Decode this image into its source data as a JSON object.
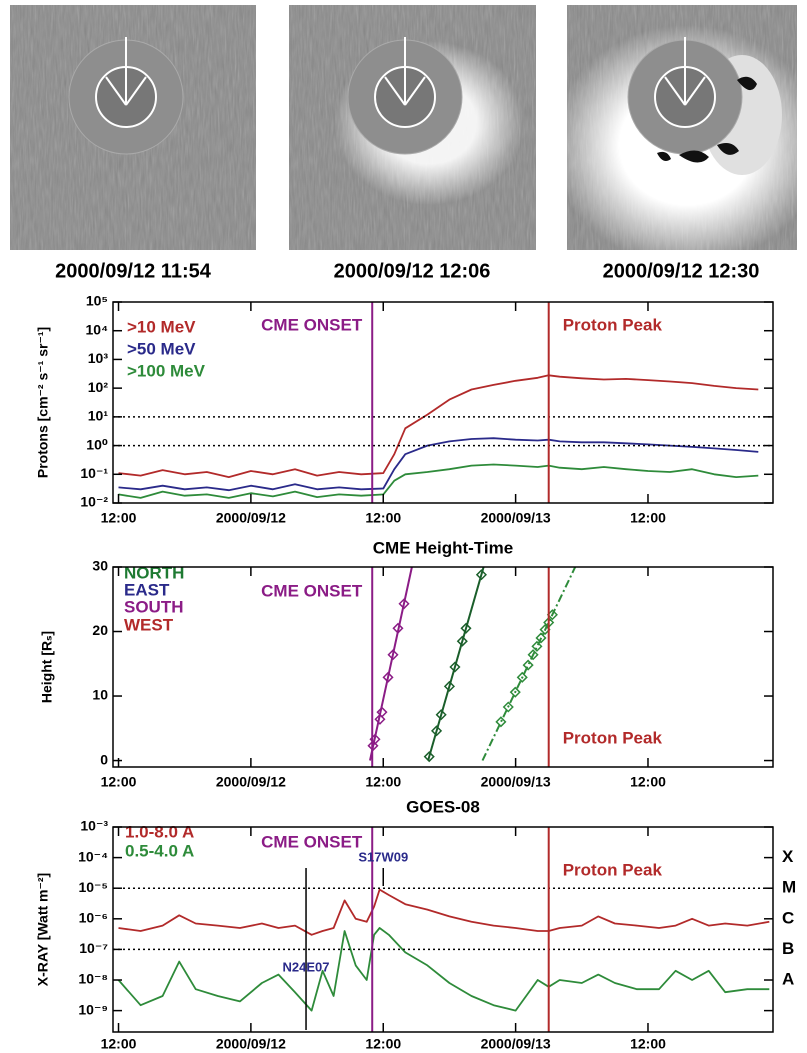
{
  "images": [
    {
      "caption": "2000/09/12 11:54"
    },
    {
      "caption": "2000/09/12 12:06"
    },
    {
      "caption": "2000/09/12 12:30"
    }
  ],
  "chart_data": [
    {
      "type": "line",
      "y_label": "Protons [cm⁻² s⁻¹ sr⁻¹]",
      "log_y": true,
      "xlim": [
        "2000-09-11 11:30",
        "2000-09-13 23:20"
      ],
      "xticks": [
        {
          "value": "2000-09-11 12:00",
          "label": "12:00"
        },
        {
          "value": "2000-09-12 00:00",
          "label": "2000/09/12"
        },
        {
          "value": "2000-09-12 12:00",
          "label": "12:00"
        },
        {
          "value": "2000-09-13 00:00",
          "label": "2000/09/13"
        },
        {
          "value": "2000-09-13 12:00",
          "label": "12:00"
        }
      ],
      "ylim": [
        0.01,
        100000
      ],
      "yticks": [
        {
          "value": 100000,
          "label": "10⁵"
        },
        {
          "value": 10000,
          "label": "10⁴"
        },
        {
          "value": 1000,
          "label": "10³"
        },
        {
          "value": 100,
          "label": "10²"
        },
        {
          "value": 10,
          "label": "10¹"
        },
        {
          "value": 1,
          "label": "10⁰"
        },
        {
          "value": 0.1,
          "label": "10⁻¹"
        },
        {
          "value": 0.01,
          "label": "10⁻²"
        }
      ],
      "hlines": [
        10,
        1
      ],
      "vlines": [
        {
          "x": "2000-09-12 11:00",
          "label": "CME ONSET",
          "color": "#8b1c86"
        },
        {
          "x": "2000-09-13 03:00",
          "label": "Proton Peak",
          "color": "#b22a2a"
        }
      ],
      "x": [
        "2000-09-11 12:00",
        "2000-09-11 14:00",
        "2000-09-11 16:00",
        "2000-09-11 18:00",
        "2000-09-11 20:00",
        "2000-09-11 22:00",
        "2000-09-12 00:00",
        "2000-09-12 02:00",
        "2000-09-12 04:00",
        "2000-09-12 06:00",
        "2000-09-12 08:00",
        "2000-09-12 10:00",
        "2000-09-12 12:00",
        "2000-09-12 13:00",
        "2000-09-12 14:00",
        "2000-09-12 16:00",
        "2000-09-12 18:00",
        "2000-09-12 20:00",
        "2000-09-12 22:00",
        "2000-09-13 00:00",
        "2000-09-13 02:00",
        "2000-09-13 03:00",
        "2000-09-13 04:00",
        "2000-09-13 06:00",
        "2000-09-13 08:00",
        "2000-09-13 10:00",
        "2000-09-13 12:00",
        "2000-09-13 14:00",
        "2000-09-13 16:00",
        "2000-09-13 18:00",
        "2000-09-13 20:00",
        "2000-09-13 22:00"
      ],
      "series": [
        {
          "name": ">10 MeV",
          "color": "#b22a2a",
          "values": [
            0.11,
            0.09,
            0.14,
            0.1,
            0.12,
            0.08,
            0.13,
            0.1,
            0.15,
            0.09,
            0.12,
            0.1,
            0.11,
            0.5,
            4,
            12,
            40,
            90,
            130,
            180,
            230,
            280,
            250,
            220,
            200,
            210,
            190,
            170,
            150,
            120,
            100,
            90
          ]
        },
        {
          "name": ">50 MeV",
          "color": "#2a2a8a",
          "values": [
            0.035,
            0.03,
            0.04,
            0.03,
            0.035,
            0.028,
            0.04,
            0.03,
            0.045,
            0.03,
            0.035,
            0.03,
            0.032,
            0.15,
            0.5,
            1.0,
            1.4,
            1.7,
            1.8,
            1.6,
            1.5,
            1.6,
            1.4,
            1.3,
            1.3,
            1.2,
            1.1,
            1.0,
            0.9,
            0.8,
            0.7,
            0.6
          ]
        },
        {
          "name": ">100 MeV",
          "color": "#2e8b3a",
          "values": [
            0.02,
            0.015,
            0.025,
            0.018,
            0.02,
            0.015,
            0.022,
            0.017,
            0.025,
            0.016,
            0.02,
            0.018,
            0.02,
            0.06,
            0.1,
            0.12,
            0.15,
            0.2,
            0.22,
            0.2,
            0.18,
            0.2,
            0.17,
            0.15,
            0.18,
            0.15,
            0.13,
            0.12,
            0.15,
            0.1,
            0.08,
            0.09
          ]
        }
      ]
    },
    {
      "type": "scatter",
      "title": "CME Height-Time",
      "y_label": "Height [Rₛ]",
      "xlim": [
        "2000-09-11 11:30",
        "2000-09-13 23:20"
      ],
      "xticks": [
        {
          "value": "2000-09-11 12:00",
          "label": "12:00"
        },
        {
          "value": "2000-09-12 00:00",
          "label": "2000/09/12"
        },
        {
          "value": "2000-09-12 12:00",
          "label": "12:00"
        },
        {
          "value": "2000-09-13 00:00",
          "label": "2000/09/13"
        },
        {
          "value": "2000-09-13 12:00",
          "label": "12:00"
        }
      ],
      "ylim": [
        -1,
        30
      ],
      "yticks": [
        0,
        10,
        20,
        30
      ],
      "vlines": [
        {
          "x": "2000-09-12 11:00",
          "label": "CME ONSET",
          "color": "#8b1c86"
        },
        {
          "x": "2000-09-13 03:00",
          "label": "Proton Peak",
          "color": "#b22a2a"
        }
      ],
      "legend": [
        {
          "label": "NORTH",
          "color": "#1e7a32"
        },
        {
          "label": "EAST",
          "color": "#2a2a8a"
        },
        {
          "label": "SOUTH",
          "color": "#8b1c86"
        },
        {
          "label": "WEST",
          "color": "#b22a2a"
        }
      ],
      "series": [
        {
          "color": "#8b1c86",
          "x": [
            "2000-09-12 11:04",
            "2000-09-12 11:15",
            "2000-09-12 11:42",
            "2000-09-12 11:53",
            "2000-09-12 12:26",
            "2000-09-12 12:53",
            "2000-09-12 13:20",
            "2000-09-12 13:53"
          ],
          "values": [
            2.3,
            3.3,
            6.4,
            7.5,
            12.9,
            16.4,
            20.5,
            24.3
          ],
          "fit": {
            "x": [
              "2000-09-12 10:48",
              "2000-09-12 14:36"
            ],
            "values": [
              0,
              30
            ],
            "line_style": "solid"
          }
        },
        {
          "color": "#1a5e2a",
          "x": [
            "2000-09-12 16:10",
            "2000-09-12 16:50",
            "2000-09-12 17:15",
            "2000-09-12 18:00",
            "2000-09-12 18:30",
            "2000-09-12 19:10",
            "2000-09-12 19:30",
            "2000-09-12 20:54"
          ],
          "values": [
            0.6,
            4.6,
            7.1,
            11.5,
            14.5,
            18.5,
            20.5,
            28.8
          ],
          "fit": {
            "x": [
              "2000-09-12 16:04",
              "2000-09-12 21:06"
            ],
            "values": [
              0,
              30
            ],
            "line_style": "solid"
          }
        },
        {
          "color": "#2e8b3a",
          "x": [
            "2000-09-12 22:40",
            "2000-09-12 23:20",
            "2000-09-12 23:58",
            "2000-09-13 00:36",
            "2000-09-13 01:08",
            "2000-09-13 01:35",
            "2000-09-13 01:56",
            "2000-09-13 02:18",
            "2000-09-13 02:40",
            "2000-09-13 03:00",
            "2000-09-13 03:20"
          ],
          "values": [
            6.0,
            8.3,
            10.6,
            12.9,
            14.8,
            16.4,
            17.7,
            19.0,
            20.3,
            21.4,
            22.6
          ],
          "fit": {
            "x": [
              "2000-09-12 21:00",
              "2000-09-13 05:24"
            ],
            "values": [
              0,
              30
            ],
            "line_style": "dashdot"
          }
        }
      ]
    },
    {
      "type": "line",
      "title": "GOES-08",
      "y_label": "X-RAY [Watt m⁻²]",
      "log_y": true,
      "xlim": [
        "2000-09-11 11:30",
        "2000-09-13 23:20"
      ],
      "xticks": [
        {
          "value": "2000-09-11 12:00",
          "label": "12:00"
        },
        {
          "value": "2000-09-12 00:00",
          "label": "2000/09/12"
        },
        {
          "value": "2000-09-12 12:00",
          "label": "12:00"
        },
        {
          "value": "2000-09-13 00:00",
          "label": "2000/09/13"
        },
        {
          "value": "2000-09-13 12:00",
          "label": "12:00"
        }
      ],
      "ylim": [
        2e-10,
        0.001
      ],
      "yticks": [
        {
          "value": 0.001,
          "label": "10⁻³"
        },
        {
          "value": 0.0001,
          "label": "10⁻⁴"
        },
        {
          "value": 1e-05,
          "label": "10⁻⁵"
        },
        {
          "value": 1e-06,
          "label": "10⁻⁶"
        },
        {
          "value": 1e-07,
          "label": "10⁻⁷"
        },
        {
          "value": 1e-08,
          "label": "10⁻⁸"
        },
        {
          "value": 1e-09,
          "label": "10⁻⁹"
        }
      ],
      "hlines": [
        1e-05,
        1e-07
      ],
      "flare_classes": [
        {
          "value": 0.0001,
          "label": "X"
        },
        {
          "value": 1e-05,
          "label": "M"
        },
        {
          "value": 1e-06,
          "label": "C"
        },
        {
          "value": 1e-07,
          "label": "B"
        },
        {
          "value": 1e-08,
          "label": "A"
        }
      ],
      "vlines": [
        {
          "x": "2000-09-12 11:00",
          "label": "CME ONSET",
          "color": "#8b1c86"
        },
        {
          "x": "2000-09-13 03:00",
          "label": "Proton Peak",
          "color": "#b22a2a"
        }
      ],
      "annotations": [
        {
          "text": "S17W09",
          "x": "2000-09-12 12:00"
        },
        {
          "text": "N24E07",
          "x": "2000-09-12 05:00"
        }
      ],
      "x": [
        "2000-09-11 12:00",
        "2000-09-11 14:00",
        "2000-09-11 16:00",
        "2000-09-11 17:30",
        "2000-09-11 19:00",
        "2000-09-11 21:00",
        "2000-09-11 23:00",
        "2000-09-12 01:00",
        "2000-09-12 02:30",
        "2000-09-12 04:00",
        "2000-09-12 05:30",
        "2000-09-12 06:30",
        "2000-09-12 07:30",
        "2000-09-12 08:30",
        "2000-09-12 09:30",
        "2000-09-12 10:30",
        "2000-09-12 11:10",
        "2000-09-12 11:40",
        "2000-09-12 12:30",
        "2000-09-12 14:00",
        "2000-09-12 16:00",
        "2000-09-12 18:00",
        "2000-09-12 20:00",
        "2000-09-12 22:00",
        "2000-09-13 00:00",
        "2000-09-13 02:00",
        "2000-09-13 03:00",
        "2000-09-13 04:00",
        "2000-09-13 06:00",
        "2000-09-13 07:30",
        "2000-09-13 09:00",
        "2000-09-13 11:00",
        "2000-09-13 13:00",
        "2000-09-13 14:30",
        "2000-09-13 16:00",
        "2000-09-13 17:30",
        "2000-09-13 19:00",
        "2000-09-13 21:00",
        "2000-09-13 23:00"
      ],
      "series": [
        {
          "name": "1.0-8.0 A",
          "color": "#b22a2a",
          "values": [
            5e-07,
            4e-07,
            6e-07,
            1.3e-06,
            7e-07,
            6e-07,
            5e-07,
            7e-07,
            5e-07,
            6e-07,
            3e-07,
            4e-07,
            5e-07,
            4e-06,
            1e-06,
            8e-07,
            2.5e-06,
            9e-06,
            6e-06,
            3e-06,
            2e-06,
            1.2e-06,
            8e-07,
            6e-07,
            5e-07,
            4e-07,
            4e-07,
            5e-07,
            6e-07,
            1.2e-06,
            7e-07,
            6e-07,
            5e-07,
            6e-07,
            1e-06,
            6e-07,
            7e-07,
            6e-07,
            8e-07
          ]
        },
        {
          "name": "0.5-4.0 A",
          "color": "#2e8b3a",
          "values": [
            1e-08,
            1.5e-09,
            3e-09,
            4e-08,
            5e-09,
            3e-09,
            2e-09,
            8e-09,
            1.5e-08,
            4e-09,
            1e-09,
            2e-08,
            3e-09,
            4e-07,
            3e-08,
            1e-08,
            3e-07,
            5e-07,
            3e-07,
            8e-08,
            3e-08,
            8e-09,
            3e-09,
            1.5e-09,
            1e-09,
            1e-08,
            6e-09,
            1e-08,
            8e-09,
            1.5e-08,
            8e-09,
            5e-09,
            5e-09,
            2e-08,
            1e-08,
            2e-08,
            4e-09,
            5e-09,
            5e-09
          ]
        }
      ]
    }
  ]
}
